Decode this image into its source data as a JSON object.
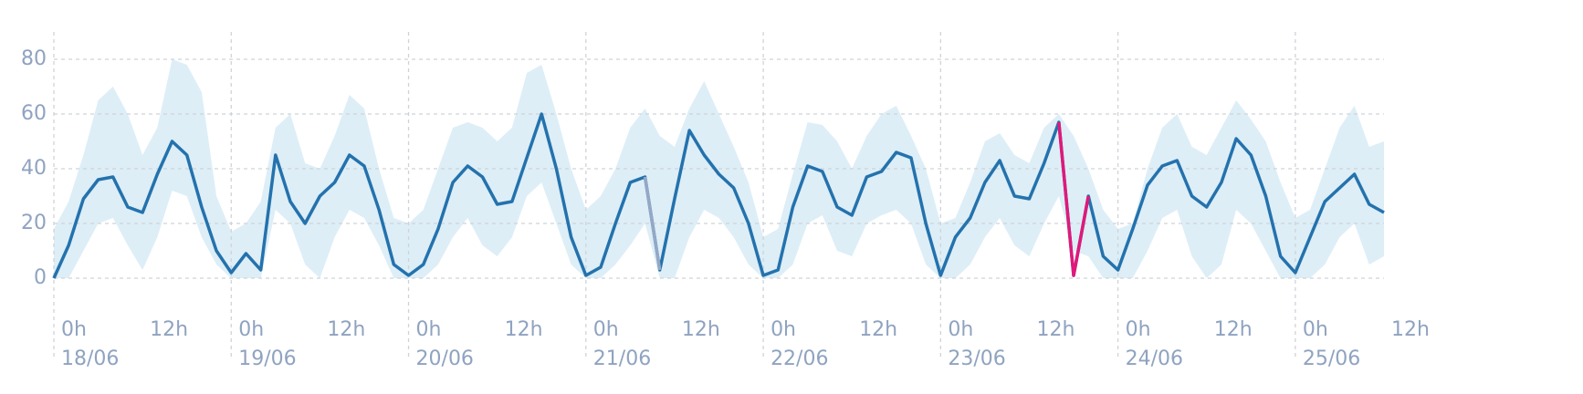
{
  "chart_data": {
    "type": "line",
    "x": [
      0,
      2,
      4,
      6,
      8,
      10,
      12,
      14,
      16,
      18,
      20,
      22,
      24,
      26,
      28,
      30,
      32,
      34,
      36,
      38,
      40,
      42,
      44,
      46,
      48,
      50,
      52,
      54,
      56,
      58,
      60,
      62,
      64,
      66,
      68,
      70,
      72,
      74,
      76,
      78,
      80,
      82,
      84,
      86,
      88,
      90,
      92,
      94,
      96,
      98,
      100,
      102,
      104,
      106,
      108,
      110,
      112,
      114,
      116,
      118,
      120,
      122,
      124,
      126,
      128,
      130,
      132,
      134,
      136,
      138,
      140,
      142,
      144,
      146,
      148,
      150,
      152,
      154,
      156,
      158,
      160,
      162,
      164,
      166,
      168,
      170,
      172,
      174,
      176,
      178,
      180
    ],
    "band": {
      "color": "#ddeef7",
      "upper": [
        18,
        28,
        45,
        65,
        70,
        60,
        45,
        55,
        80,
        78,
        68,
        30,
        17,
        20,
        28,
        55,
        60,
        42,
        40,
        52,
        67,
        62,
        40,
        22,
        20,
        25,
        40,
        55,
        57,
        55,
        50,
        55,
        75,
        78,
        60,
        40,
        25,
        30,
        40,
        55,
        62,
        52,
        48,
        62,
        72,
        60,
        48,
        35,
        15,
        18,
        38,
        57,
        56,
        50,
        40,
        52,
        60,
        63,
        52,
        40,
        20,
        22,
        35,
        50,
        53,
        45,
        42,
        55,
        60,
        52,
        40,
        25,
        18,
        20,
        40,
        55,
        60,
        48,
        45,
        55,
        65,
        58,
        50,
        35,
        22,
        25,
        40,
        55,
        63,
        48,
        50
      ],
      "lower": [
        0,
        0,
        10,
        20,
        22,
        12,
        3,
        15,
        32,
        30,
        15,
        5,
        0,
        0,
        0,
        25,
        20,
        5,
        0,
        15,
        25,
        22,
        12,
        0,
        0,
        0,
        5,
        15,
        22,
        12,
        8,
        15,
        30,
        35,
        20,
        5,
        0,
        0,
        5,
        12,
        20,
        0,
        0,
        15,
        25,
        22,
        15,
        5,
        0,
        0,
        5,
        20,
        23,
        10,
        8,
        20,
        23,
        25,
        20,
        5,
        0,
        0,
        5,
        15,
        22,
        12,
        8,
        20,
        30,
        10,
        8,
        0,
        0,
        0,
        10,
        22,
        25,
        8,
        0,
        5,
        25,
        20,
        10,
        0,
        0,
        0,
        5,
        15,
        20,
        5,
        8
      ]
    },
    "series": [
      {
        "color": "#2472ad",
        "values": [
          0,
          12,
          29,
          36,
          37,
          26,
          24,
          38,
          50,
          45,
          26,
          10,
          2,
          9,
          3,
          45,
          28,
          20,
          30,
          35,
          45,
          41,
          25,
          5,
          1,
          5,
          18,
          35,
          41,
          37,
          27,
          28,
          44,
          60,
          40,
          15,
          1,
          4,
          20,
          35,
          37,
          3,
          29,
          54,
          45,
          38,
          33,
          20,
          1,
          3,
          26,
          41,
          39,
          26,
          23,
          37,
          39,
          46,
          44,
          20,
          1,
          15,
          22,
          35,
          43,
          30,
          29,
          42,
          57,
          1,
          30,
          8,
          3,
          18,
          34,
          41,
          43,
          30,
          26,
          35,
          51,
          45,
          30,
          8,
          2,
          15,
          28,
          33,
          38,
          27,
          24
        ]
      },
      {
        "color": "#94a8c6",
        "values": [
          null,
          null,
          null,
          null,
          null,
          null,
          null,
          null,
          null,
          null,
          null,
          null,
          null,
          null,
          null,
          null,
          null,
          null,
          null,
          null,
          null,
          null,
          null,
          null,
          null,
          null,
          null,
          null,
          null,
          null,
          null,
          null,
          null,
          null,
          null,
          null,
          null,
          null,
          null,
          null,
          37,
          3,
          null,
          null,
          null,
          null,
          null,
          null,
          null,
          null,
          null,
          null,
          null,
          null,
          null,
          null,
          null,
          null,
          null,
          null,
          null,
          null,
          null,
          null,
          null,
          null,
          null,
          null,
          null,
          null,
          null,
          null,
          null,
          null,
          null,
          null,
          null,
          null,
          null,
          null,
          null,
          null,
          null,
          null,
          null,
          null,
          null,
          null,
          null,
          null,
          null
        ]
      },
      {
        "color": "#e0197a",
        "values": [
          null,
          null,
          null,
          null,
          null,
          null,
          null,
          null,
          null,
          null,
          null,
          null,
          null,
          null,
          null,
          null,
          null,
          null,
          null,
          null,
          null,
          null,
          null,
          null,
          null,
          null,
          null,
          null,
          null,
          null,
          null,
          null,
          null,
          null,
          null,
          null,
          null,
          null,
          null,
          null,
          null,
          null,
          null,
          null,
          null,
          null,
          null,
          null,
          null,
          null,
          null,
          null,
          null,
          null,
          null,
          null,
          null,
          null,
          null,
          null,
          null,
          null,
          null,
          null,
          null,
          null,
          null,
          null,
          57,
          1,
          30,
          null,
          null,
          null,
          null,
          null,
          null,
          null,
          null,
          null,
          null,
          null,
          null,
          null,
          null,
          null,
          null,
          null,
          null,
          null,
          null
        ]
      }
    ],
    "xlim": [
      0,
      180
    ],
    "ylim": [
      0,
      90
    ],
    "yticks": [
      0,
      20,
      40,
      60,
      80
    ],
    "xticks": [
      {
        "value": 0,
        "label": "0h"
      },
      {
        "value": 12,
        "label": "12h"
      },
      {
        "value": 24,
        "label": "0h"
      },
      {
        "value": 36,
        "label": "12h"
      },
      {
        "value": 48,
        "label": "0h"
      },
      {
        "value": 60,
        "label": "12h"
      },
      {
        "value": 72,
        "label": "0h"
      },
      {
        "value": 84,
        "label": "12h"
      },
      {
        "value": 96,
        "label": "0h"
      },
      {
        "value": 108,
        "label": "12h"
      },
      {
        "value": 120,
        "label": "0h"
      },
      {
        "value": 132,
        "label": "12h"
      },
      {
        "value": 144,
        "label": "0h"
      },
      {
        "value": 156,
        "label": "12h"
      },
      {
        "value": 168,
        "label": "0h"
      },
      {
        "value": 180,
        "label": "12h"
      }
    ],
    "xdates": [
      {
        "value": 0,
        "label": "18/06"
      },
      {
        "value": 24,
        "label": "19/06"
      },
      {
        "value": 48,
        "label": "20/06"
      },
      {
        "value": 72,
        "label": "21/06"
      },
      {
        "value": 96,
        "label": "22/06"
      },
      {
        "value": 120,
        "label": "23/06"
      },
      {
        "value": 144,
        "label": "24/06"
      },
      {
        "value": 168,
        "label": "25/06"
      }
    ],
    "grid": true
  }
}
